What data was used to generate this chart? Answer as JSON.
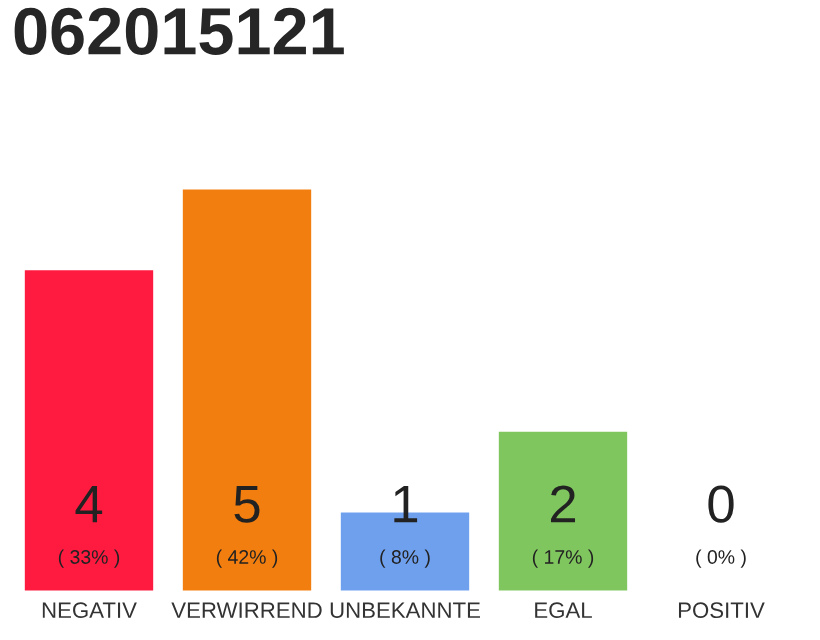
{
  "chart_data": {
    "type": "bar",
    "title": "062015121",
    "categories": [
      "NEGATIV",
      "VERWIRREND",
      "UNBEKANNTE",
      "EGAL",
      "POSITIV"
    ],
    "values": [
      4,
      5,
      1,
      2,
      0
    ],
    "colors": [
      "#ff1a40",
      "#f27e0f",
      "#6fa0ee",
      "#80c65f",
      null
    ],
    "value_labels": [
      "4\n( 33% )",
      "5\n( 42% )",
      "1\n( 8% )",
      "2\n( 17% )",
      "0\n( 0% )"
    ],
    "tick_labels": "x",
    "grid": false,
    "legend": false
  }
}
